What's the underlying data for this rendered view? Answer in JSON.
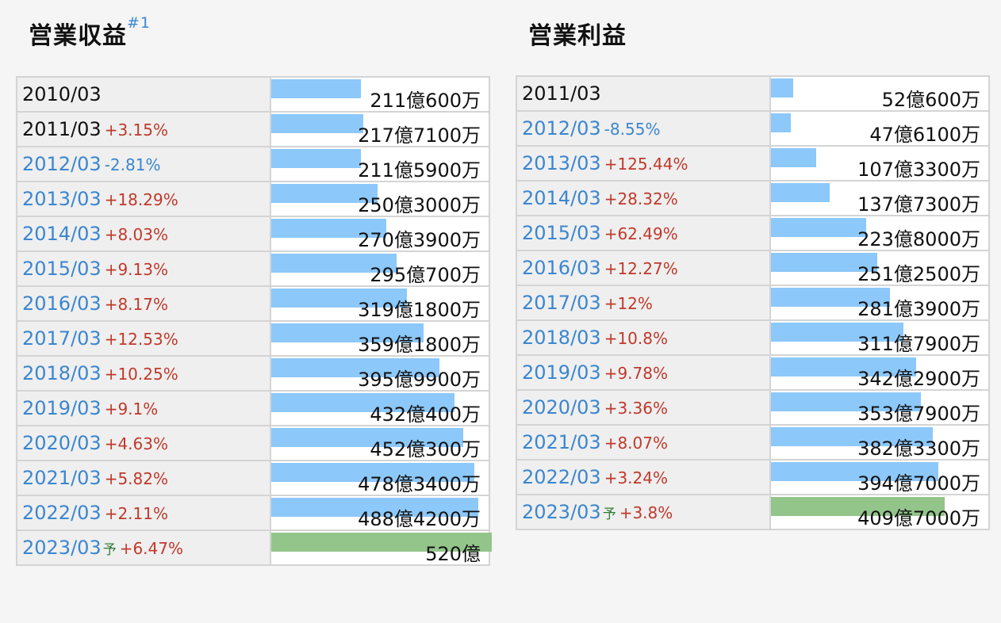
{
  "chart_data": [
    {
      "type": "bar",
      "title": "営業収益",
      "title_note": "#1",
      "categories": [
        "2010/03",
        "2011/03",
        "2012/03",
        "2013/03",
        "2014/03",
        "2015/03",
        "2016/03",
        "2017/03",
        "2018/03",
        "2019/03",
        "2020/03",
        "2021/03",
        "2022/03",
        "2023/03"
      ],
      "rows": [
        {
          "period": "2010/03",
          "change": "",
          "value": 211.06,
          "label": "211億600万",
          "forecast": false
        },
        {
          "period": "2011/03",
          "change": "+3.15%",
          "value": 217.71,
          "label": "217億7100万",
          "forecast": false
        },
        {
          "period": "2012/03",
          "change": "-2.81%",
          "value": 211.59,
          "label": "211億5900万",
          "forecast": false
        },
        {
          "period": "2013/03",
          "change": "+18.29%",
          "value": 250.3,
          "label": "250億3000万",
          "forecast": false
        },
        {
          "period": "2014/03",
          "change": "+8.03%",
          "value": 270.39,
          "label": "270億3900万",
          "forecast": false
        },
        {
          "period": "2015/03",
          "change": "+9.13%",
          "value": 295.07,
          "label": "295億700万",
          "forecast": false
        },
        {
          "period": "2016/03",
          "change": "+8.17%",
          "value": 319.18,
          "label": "319億1800万",
          "forecast": false
        },
        {
          "period": "2017/03",
          "change": "+12.53%",
          "value": 359.18,
          "label": "359億1800万",
          "forecast": false
        },
        {
          "period": "2018/03",
          "change": "+10.25%",
          "value": 395.99,
          "label": "395億9900万",
          "forecast": false
        },
        {
          "period": "2019/03",
          "change": "+9.1%",
          "value": 432.04,
          "label": "432億400万",
          "forecast": false
        },
        {
          "period": "2020/03",
          "change": "+4.63%",
          "value": 452.03,
          "label": "452億300万",
          "forecast": false
        },
        {
          "period": "2021/03",
          "change": "+5.82%",
          "value": 478.34,
          "label": "478億3400万",
          "forecast": false
        },
        {
          "period": "2022/03",
          "change": "+2.11%",
          "value": 488.42,
          "label": "488億4200万",
          "forecast": false
        },
        {
          "period": "2023/03",
          "change": "+6.47%",
          "value": 520.0,
          "label": "520億",
          "forecast": true,
          "forecast_mark": "予"
        }
      ],
      "max": 520,
      "colors": {
        "bar": "#8cc8fa",
        "forecast_bar": "#93c58a",
        "up": "#c0392b",
        "down": "#3b86d0"
      }
    },
    {
      "type": "bar",
      "title": "営業利益",
      "categories": [
        "2011/03",
        "2012/03",
        "2013/03",
        "2014/03",
        "2015/03",
        "2016/03",
        "2017/03",
        "2018/03",
        "2019/03",
        "2020/03",
        "2021/03",
        "2022/03",
        "2023/03"
      ],
      "rows": [
        {
          "period": "2011/03",
          "change": "",
          "value": 52.06,
          "label": "52億600万",
          "forecast": false
        },
        {
          "period": "2012/03",
          "change": "-8.55%",
          "value": 47.61,
          "label": "47億6100万",
          "forecast": false
        },
        {
          "period": "2013/03",
          "change": "+125.44%",
          "value": 107.33,
          "label": "107億3300万",
          "forecast": false
        },
        {
          "period": "2014/03",
          "change": "+28.32%",
          "value": 137.73,
          "label": "137億7300万",
          "forecast": false
        },
        {
          "period": "2015/03",
          "change": "+62.49%",
          "value": 223.8,
          "label": "223億8000万",
          "forecast": false
        },
        {
          "period": "2016/03",
          "change": "+12.27%",
          "value": 251.25,
          "label": "251億2500万",
          "forecast": false
        },
        {
          "period": "2017/03",
          "change": "+12%",
          "value": 281.39,
          "label": "281億3900万",
          "forecast": false
        },
        {
          "period": "2018/03",
          "change": "+10.8%",
          "value": 311.79,
          "label": "311億7900万",
          "forecast": false
        },
        {
          "period": "2019/03",
          "change": "+9.78%",
          "value": 342.29,
          "label": "342億2900万",
          "forecast": false
        },
        {
          "period": "2020/03",
          "change": "+3.36%",
          "value": 353.79,
          "label": "353億7900万",
          "forecast": false
        },
        {
          "period": "2021/03",
          "change": "+8.07%",
          "value": 382.33,
          "label": "382億3300万",
          "forecast": false
        },
        {
          "period": "2022/03",
          "change": "+3.24%",
          "value": 394.7,
          "label": "394億7000万",
          "forecast": false
        },
        {
          "period": "2023/03",
          "change": "+3.8%",
          "value": 409.7,
          "label": "409億7000万",
          "forecast": true,
          "forecast_mark": "予"
        }
      ],
      "max": 520,
      "colors": {
        "bar": "#8cc8fa",
        "forecast_bar": "#93c58a",
        "up": "#c0392b",
        "down": "#3b86d0"
      }
    }
  ]
}
